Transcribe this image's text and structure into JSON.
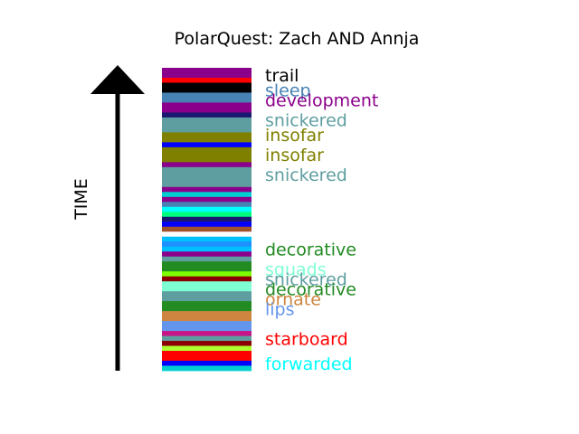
{
  "chart_data": {
    "type": "bar",
    "orientation": "stacked-timeline",
    "title": "PolarQuest: Zach AND Annja",
    "ylabel": "TIME",
    "total_units": 61,
    "segments_from_top": [
      {
        "color": "#8b008b"
      },
      {
        "color": "#8b008b"
      },
      {
        "color": "#ff0000"
      },
      {
        "color": "#000000"
      },
      {
        "color": "#000000"
      },
      {
        "color": "#4682b4"
      },
      {
        "color": "#4682b4"
      },
      {
        "color": "#8b008b"
      },
      {
        "color": "#8b008b"
      },
      {
        "color": "#191970"
      },
      {
        "color": "#5f9ea0"
      },
      {
        "color": "#5f9ea0"
      },
      {
        "color": "#5f9ea0"
      },
      {
        "color": "#808000"
      },
      {
        "color": "#808000"
      },
      {
        "color": "#0000ff"
      },
      {
        "color": "#808000"
      },
      {
        "color": "#808000"
      },
      {
        "color": "#808000"
      },
      {
        "color": "#8b008b"
      },
      {
        "color": "#5f9ea0"
      },
      {
        "color": "#5f9ea0"
      },
      {
        "color": "#5f9ea0"
      },
      {
        "color": "#5f9ea0"
      },
      {
        "color": "#8b008b"
      },
      {
        "color": "#00ced1"
      },
      {
        "color": "#8b008b"
      },
      {
        "color": "#4682b4"
      },
      {
        "color": "#00ffff"
      },
      {
        "color": "#00ff7f"
      },
      {
        "color": "#191970"
      },
      {
        "color": "#0000ff"
      },
      {
        "color": "#a0522d"
      },
      {
        "color": "#ffffff"
      },
      {
        "color": "#00bfff"
      },
      {
        "color": "#1e90ff"
      },
      {
        "color": "#00bfff"
      },
      {
        "color": "#8b008b"
      },
      {
        "color": "#5f9ea0"
      },
      {
        "color": "#228b22"
      },
      {
        "color": "#228b22"
      },
      {
        "color": "#7fff00"
      },
      {
        "color": "#8b0000"
      },
      {
        "color": "#7fffd4"
      },
      {
        "color": "#7fffd4"
      },
      {
        "color": "#5f9ea0"
      },
      {
        "color": "#5f9ea0"
      },
      {
        "color": "#228b22"
      },
      {
        "color": "#228b22"
      },
      {
        "color": "#cd853f"
      },
      {
        "color": "#cd853f"
      },
      {
        "color": "#6495ed"
      },
      {
        "color": "#6495ed"
      },
      {
        "color": "#c71585"
      },
      {
        "color": "#5f9ea0"
      },
      {
        "color": "#8b0000"
      },
      {
        "color": "#adff2f"
      },
      {
        "color": "#ff0000"
      },
      {
        "color": "#ff0000"
      },
      {
        "color": "#0000ff"
      },
      {
        "color": "#00ced1"
      }
    ],
    "labels": [
      {
        "text": "trail",
        "color": "#000000",
        "position": 1.5
      },
      {
        "text": "sleep",
        "color": "#4682b4",
        "position": 4.5
      },
      {
        "text": "development",
        "color": "#8b008b",
        "position": 6.5
      },
      {
        "text": "snickered",
        "color": "#5f9ea0",
        "position": 10.5
      },
      {
        "text": "insofar",
        "color": "#808000",
        "position": 13.5
      },
      {
        "text": "insofar",
        "color": "#808000",
        "position": 17.5
      },
      {
        "text": "snickered",
        "color": "#5f9ea0",
        "position": 21.5
      },
      {
        "text": "decorative",
        "color": "#228b22",
        "position": 36.5
      },
      {
        "text": "squads",
        "color": "#7fffd4",
        "position": 40.5
      },
      {
        "text": "snickered",
        "color": "#5f9ea0",
        "position": 42.5
      },
      {
        "text": "decorative",
        "color": "#228b22",
        "position": 44.5
      },
      {
        "text": "ornate",
        "color": "#cd853f",
        "position": 46.5
      },
      {
        "text": "lips",
        "color": "#6495ed",
        "position": 48.5
      },
      {
        "text": "starboard",
        "color": "#ff0000",
        "position": 54.5
      },
      {
        "text": "forwarded",
        "color": "#00ffff",
        "position": 59.5
      }
    ]
  }
}
